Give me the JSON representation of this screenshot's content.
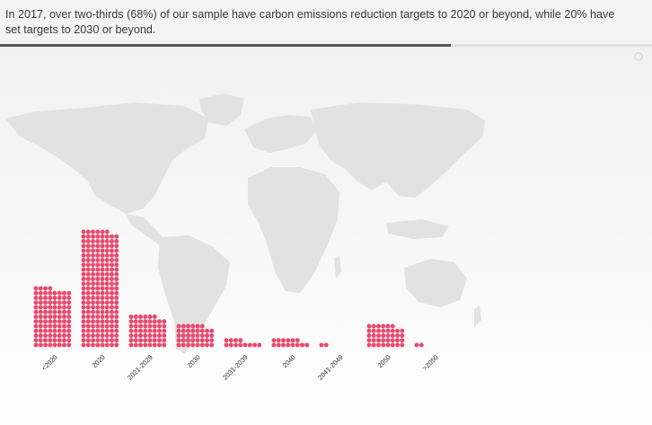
{
  "header": {
    "text": "In 2017, over two-thirds (68%) of our sample have carbon emissions reduction targets to 2020 or beyond, while 20% have set targets to 2030 or beyond."
  },
  "colors": {
    "dot": "#e84a6f",
    "map": "#e2e2e2",
    "progress": "#555555"
  },
  "icons": {
    "corner": "settings-icon",
    "background": "world-map-icon"
  },
  "chart_data": {
    "type": "bar",
    "categories": [
      "<2020",
      "2020",
      "2021-2029",
      "2030",
      "2031-2039",
      "2040",
      "2041-2049",
      "2050",
      ">2050"
    ],
    "values": [
      100,
      198,
      54,
      38,
      12,
      14,
      2,
      38,
      2
    ],
    "title": "",
    "xlabel": "",
    "ylabel": "",
    "grid": false,
    "legend": "none"
  }
}
